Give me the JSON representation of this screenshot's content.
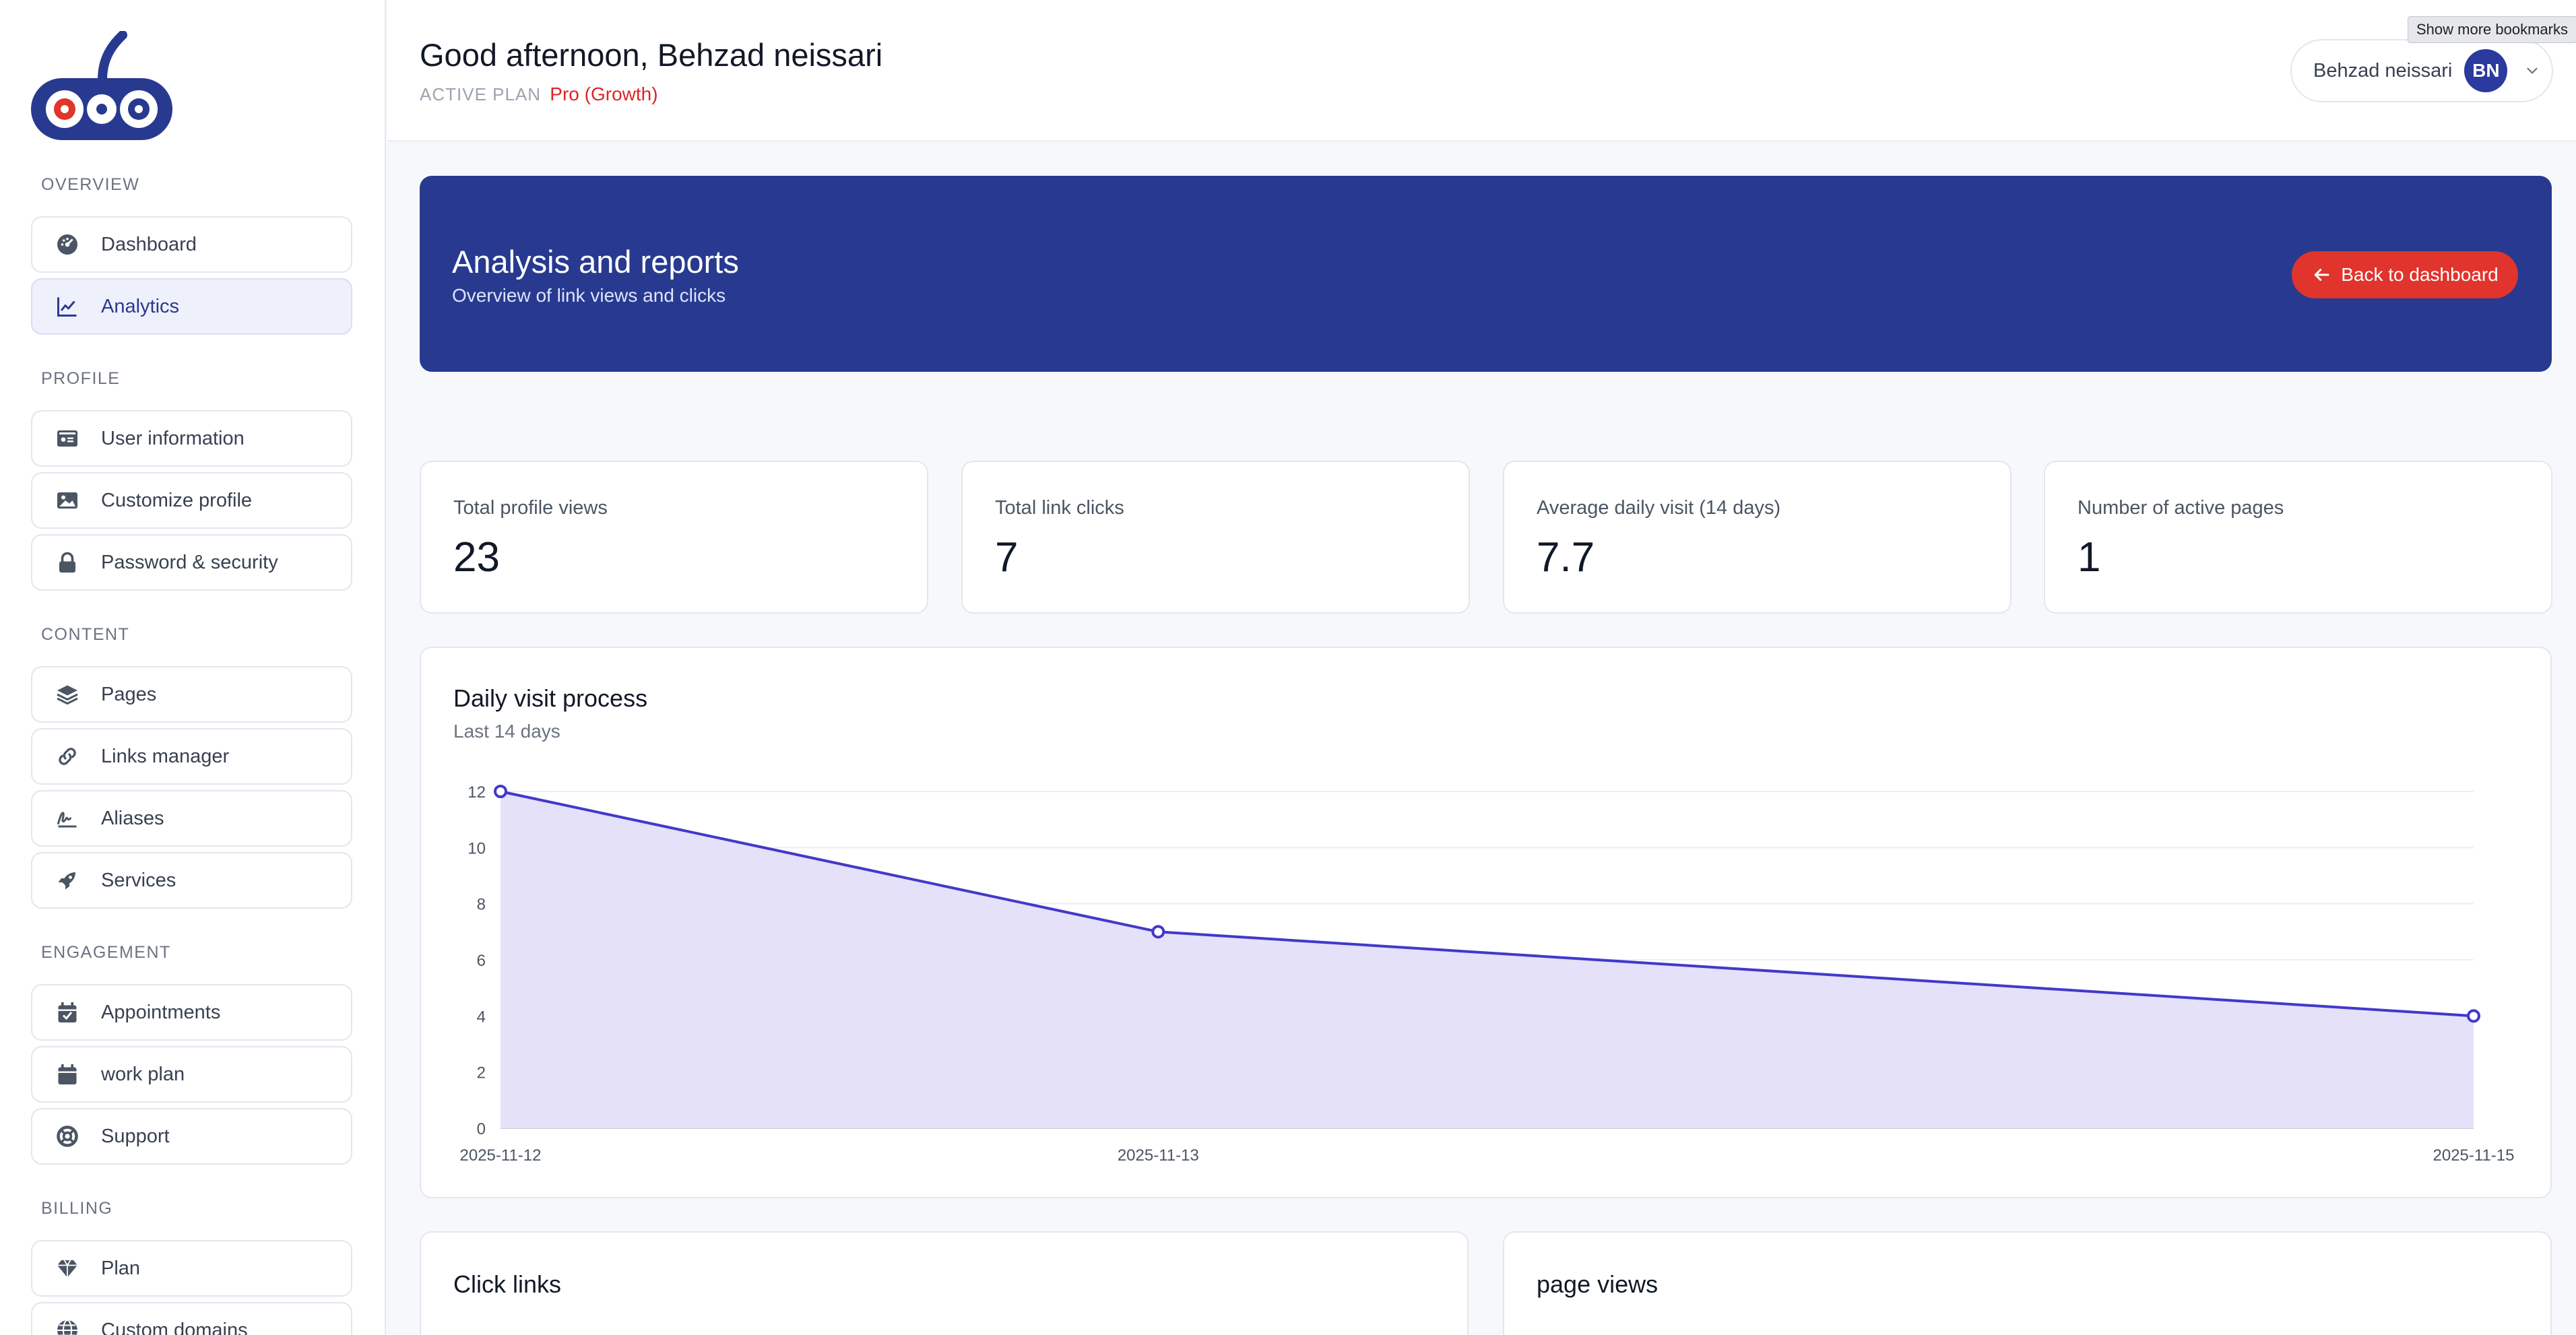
{
  "sidebar": {
    "sections": [
      {
        "label": "OVERVIEW",
        "items": [
          {
            "label": "Dashboard",
            "icon": "dashboard-gauge-icon"
          },
          {
            "label": "Analytics",
            "icon": "line-chart-icon",
            "active": true
          }
        ]
      },
      {
        "label": "PROFILE",
        "items": [
          {
            "label": "User information",
            "icon": "id-card-icon"
          },
          {
            "label": "Customize profile",
            "icon": "image-icon"
          },
          {
            "label": "Password & security",
            "icon": "lock-icon"
          }
        ]
      },
      {
        "label": "CONTENT",
        "items": [
          {
            "label": "Pages",
            "icon": "layers-icon"
          },
          {
            "label": "Links manager",
            "icon": "link-icon"
          },
          {
            "label": "Aliases",
            "icon": "signature-icon"
          },
          {
            "label": "Services",
            "icon": "rocket-icon"
          }
        ]
      },
      {
        "label": "ENGAGEMENT",
        "items": [
          {
            "label": "Appointments",
            "icon": "calendar-check-icon"
          },
          {
            "label": "work plan",
            "icon": "calendar-icon"
          },
          {
            "label": "Support",
            "icon": "life-ring-icon"
          }
        ]
      },
      {
        "label": "BILLING",
        "items": [
          {
            "label": "Plan",
            "icon": "gem-icon"
          },
          {
            "label": "Custom domains",
            "icon": "globe-icon"
          }
        ]
      }
    ]
  },
  "header": {
    "greeting": "Good afternoon, Behzad neissari",
    "plan_key": "ACTIVE PLAN",
    "plan_value": "Pro (Growth)",
    "user_name": "Behzad neissari",
    "avatar_initials": "BN",
    "tooltip": "Show more bookmarks"
  },
  "banner": {
    "title": "Analysis and reports",
    "subtitle": "Overview of link views and clicks",
    "back_button": "Back to dashboard"
  },
  "stats": [
    {
      "label": "Total profile views",
      "value": "23"
    },
    {
      "label": "Total link clicks",
      "value": "7"
    },
    {
      "label": "Average daily visit (14 days)",
      "value": "7.7"
    },
    {
      "label": "Number of active pages",
      "value": "1"
    }
  ],
  "chart": {
    "title": "Daily visit process",
    "subtitle": "Last 14 days"
  },
  "chart_data": {
    "type": "area",
    "x": [
      "2025-11-12",
      "2025-11-13",
      "2025-11-15"
    ],
    "series": [
      {
        "values": [
          12,
          7,
          4
        ]
      }
    ],
    "ylim": [
      0,
      12
    ],
    "yticks": [
      0,
      2,
      4,
      6,
      8,
      10,
      12
    ],
    "grid": true,
    "color": "#4338ca",
    "fill": "#e4e1f8"
  },
  "bottom_cards": [
    {
      "title": "Click links"
    },
    {
      "title": "page views"
    }
  ],
  "colors": {
    "banner": "#283a8f",
    "accent_red": "#e0342c",
    "avatar": "#2b3a9e"
  }
}
